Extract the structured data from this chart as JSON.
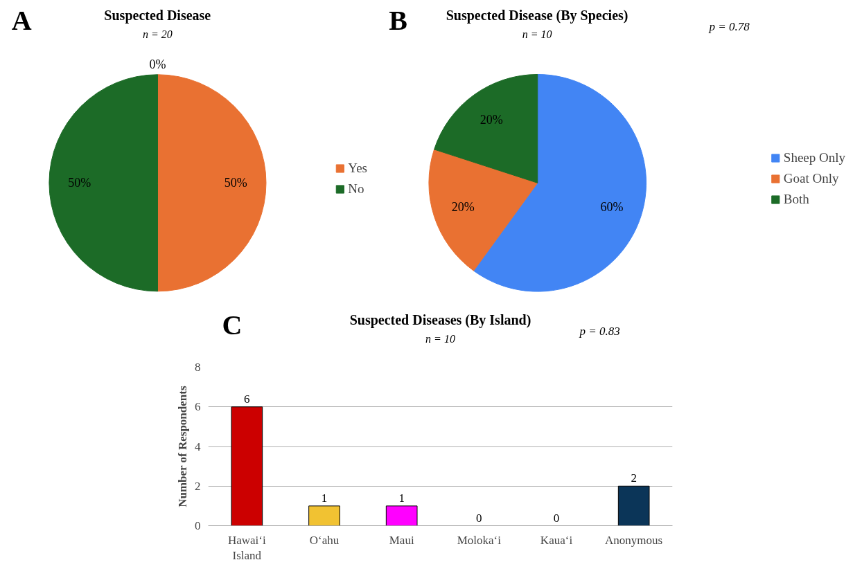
{
  "chart_data": [
    {
      "type": "pie",
      "title": "Suspected Disease",
      "subtitle": "n = 20",
      "annotations": [
        "A"
      ],
      "categories": [
        "Yes",
        "No",
        null
      ],
      "values": [
        50,
        50,
        0
      ],
      "colors": [
        "#e97132",
        "#1c6b27",
        null
      ],
      "value_labels": [
        "50%",
        "50%",
        "0%"
      ],
      "legend": "right"
    },
    {
      "type": "pie",
      "title": "Suspected Disease (By Species)",
      "subtitle": "n = 10",
      "annotations": [
        "B",
        "p = 0.78"
      ],
      "categories": [
        "Sheep Only",
        "Goat Only",
        "Both"
      ],
      "values": [
        60,
        20,
        20
      ],
      "colors": [
        "#4285f4",
        "#e97132",
        "#1c6b27"
      ],
      "value_labels": [
        "60%",
        "20%",
        "20%"
      ],
      "legend": "right"
    },
    {
      "type": "bar",
      "title": "Suspected Diseases (By Island)",
      "subtitle": "n = 10",
      "annotations": [
        "C",
        "p = 0.83"
      ],
      "ylabel": "Number of Respondents",
      "categories": [
        "Hawai‘i\nIsland",
        "O‘ahu",
        "Maui",
        "Moloka‘i",
        "Kaua‘i",
        "Anonymous"
      ],
      "values": [
        6,
        1,
        1,
        0,
        0,
        2
      ],
      "colors": [
        "#cc0000",
        "#f1c232",
        "#ff00ff",
        null,
        null,
        "#0b3558"
      ],
      "ylim": [
        0,
        8
      ],
      "yticks": [
        0,
        2,
        4,
        6,
        8
      ],
      "grid": "y",
      "data_labels": true
    }
  ]
}
